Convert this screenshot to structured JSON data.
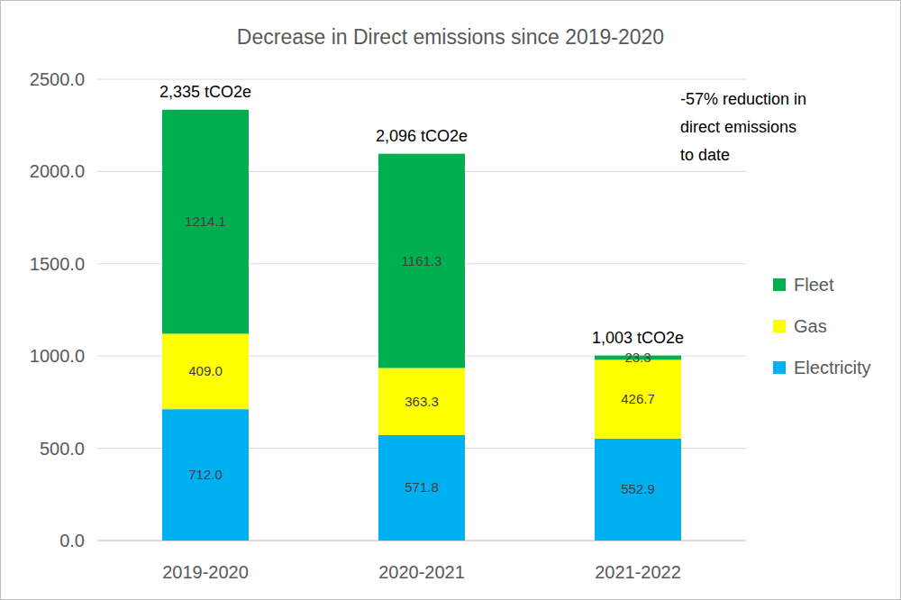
{
  "chart_data": {
    "type": "bar",
    "stacked": true,
    "title": "Decrease in Direct emissions since 2019-2020",
    "categories": [
      "2019-2020",
      "2020-2021",
      "2021-2022"
    ],
    "series": [
      {
        "name": "Electricity",
        "color": "#00b0f0",
        "values": [
          712.0,
          571.8,
          552.9
        ],
        "value_labels": [
          "712.0",
          "571.8",
          "552.9"
        ]
      },
      {
        "name": "Gas",
        "color": "#ffff00",
        "values": [
          409.0,
          363.3,
          426.7
        ],
        "value_labels": [
          "409.0",
          "363.3",
          "426.7"
        ]
      },
      {
        "name": "Fleet",
        "color": "#00b050",
        "values": [
          1214.1,
          1161.3,
          23.3
        ],
        "value_labels": [
          "1214.1",
          "1161.3",
          "23.3"
        ]
      }
    ],
    "totals": {
      "values": [
        2335,
        2096,
        1003
      ],
      "value_labels": [
        "2,335 tCO2e",
        "2,096 tCO2e",
        "1,003 tCO2e"
      ]
    },
    "annotations": [
      {
        "text": [
          "-57% reduction in",
          "direct emissions",
          "to date"
        ]
      }
    ],
    "ylim": [
      0,
      2500
    ],
    "yticks": [
      {
        "value": 0,
        "label": "0.0"
      },
      {
        "value": 500,
        "label": "500.0"
      },
      {
        "value": 1000,
        "label": "1000.0"
      },
      {
        "value": 1500,
        "label": "1500.0"
      },
      {
        "value": 2000,
        "label": "2000.0"
      },
      {
        "value": 2500,
        "label": "2500.0"
      }
    ],
    "grid": true,
    "data_labels": true,
    "legend": "right"
  }
}
